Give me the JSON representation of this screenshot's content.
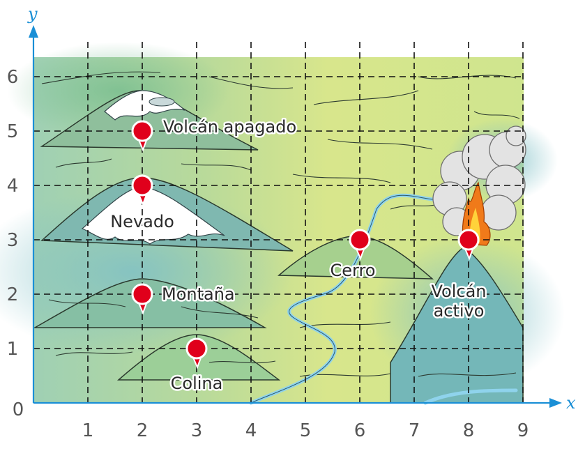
{
  "axes": {
    "x_name": "x",
    "y_name": "y",
    "origin_label": "0",
    "x_ticks": [
      "1",
      "2",
      "3",
      "4",
      "5",
      "6",
      "7",
      "8",
      "9"
    ],
    "y_ticks": [
      "1",
      "2",
      "3",
      "4",
      "5",
      "6"
    ]
  },
  "places": [
    {
      "label": "Volcán apagado",
      "x": 2,
      "y": 5
    },
    {
      "label": "Nevado",
      "x": 2,
      "y": 4
    },
    {
      "label": "Montaña",
      "x": 2,
      "y": 2
    },
    {
      "label": "Colina",
      "x": 3,
      "y": 1
    },
    {
      "label": "Cerro",
      "x": 6,
      "y": 3
    },
    {
      "label": "Volcán activo",
      "x": 8,
      "y": 3
    }
  ],
  "colors": {
    "axis": "#1a8fd6",
    "marker": "#e0001b",
    "land_light": "#d6e48a",
    "land_blue": "#8cc8c0",
    "snow": "#ffffff",
    "river": "#8fd3ec",
    "fire": "#f07a1a",
    "smoke": "#d8d8d8"
  }
}
